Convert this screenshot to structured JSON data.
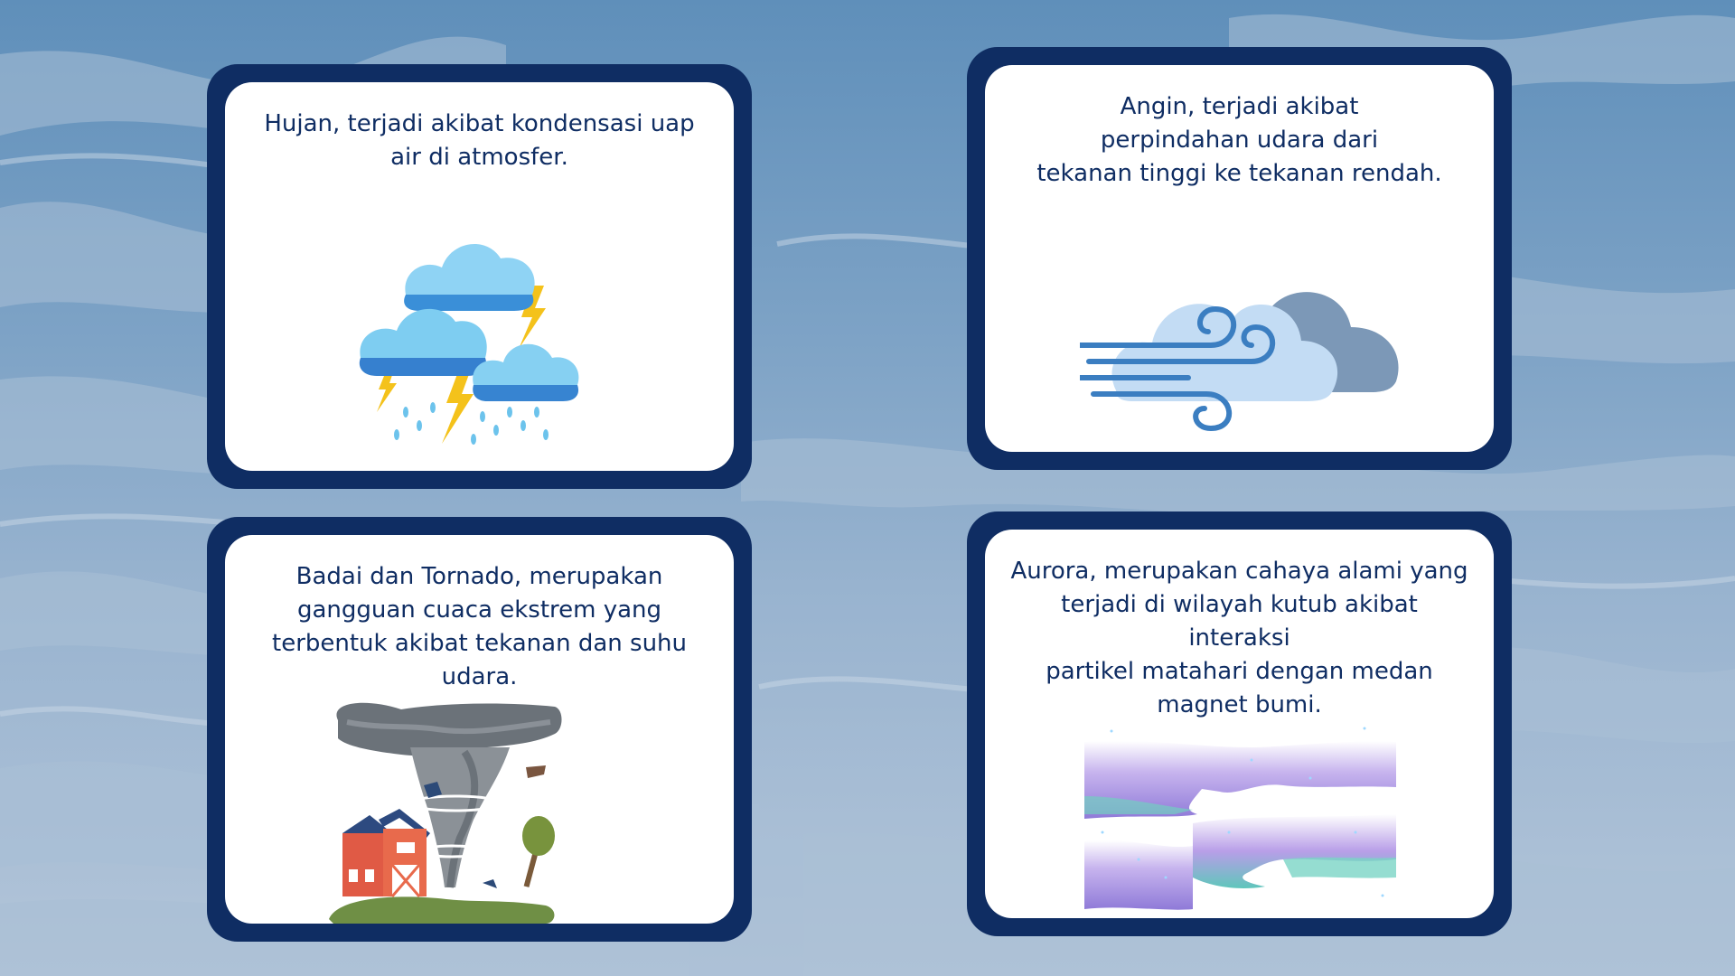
{
  "cards": {
    "rain": {
      "text": "Hujan, terjadi akibat kondensasi uap\nair di atmosfer.",
      "icon": "rain-storm-clouds-icon"
    },
    "wind": {
      "text": "Angin, terjadi akibat\nperpindahan udara dari\ntekanan tinggi ke tekanan rendah.",
      "icon": "wind-cloud-icon"
    },
    "storm": {
      "text": "Badai dan Tornado, merupakan\ngangguan cuaca ekstrem yang\nterbentuk akibat tekanan dan suhu\nudara.",
      "icon": "tornado-barn-illustration"
    },
    "aurora": {
      "text": "Aurora, merupakan cahaya alami yang\nterjadi di wilayah kutub akibat interaksi\npartikel matahari dengan medan\nmagnet bumi.",
      "icon": "aurora-illustration"
    }
  },
  "colors": {
    "card_border": "#0f2d63",
    "text": "#0f2d63",
    "background_sky": "#6e98c0"
  }
}
